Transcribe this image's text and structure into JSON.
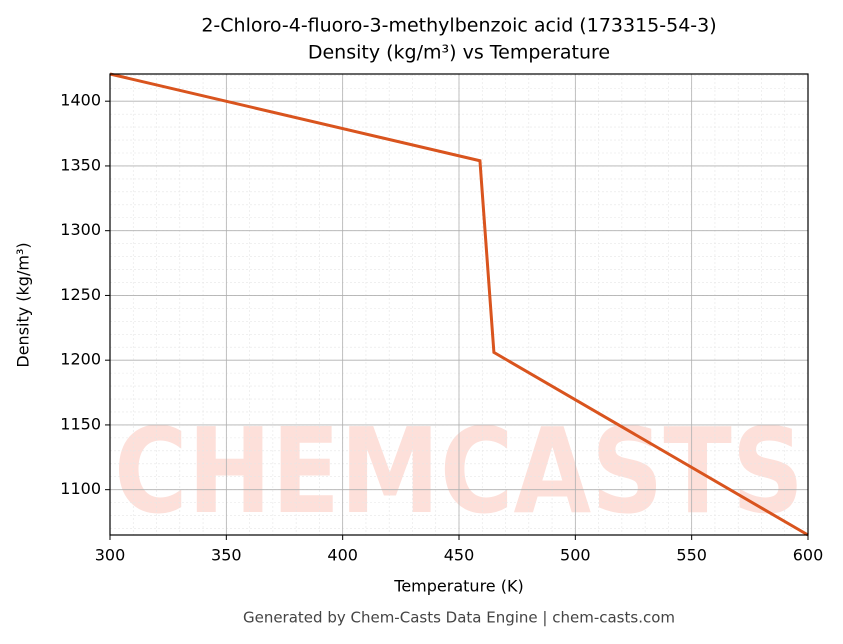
{
  "chart_data": {
    "type": "line",
    "title": "2-Chloro-4-fluoro-3-methylbenzoic acid (173315-54-3)",
    "subtitle": "Density (kg/m³) vs Temperature",
    "x_label": "Temperature (K)",
    "y_label": "Density (kg/m³)",
    "watermark": "CHEMCASTS",
    "footer": "Generated by Chem-Casts Data Engine | chem-casts.com",
    "x": [
      300,
      459,
      465,
      600
    ],
    "series": [
      {
        "name": "Density",
        "color": "#d9541e",
        "values": [
          1421,
          1354,
          1206,
          1065
        ]
      }
    ],
    "xlim": [
      300,
      600
    ],
    "xticks": [
      300,
      350,
      400,
      450,
      500,
      550,
      600
    ],
    "ylim": [
      1065,
      1421
    ],
    "yticks": [
      1100,
      1150,
      1200,
      1250,
      1300,
      1350,
      1400
    ],
    "grid": true
  }
}
